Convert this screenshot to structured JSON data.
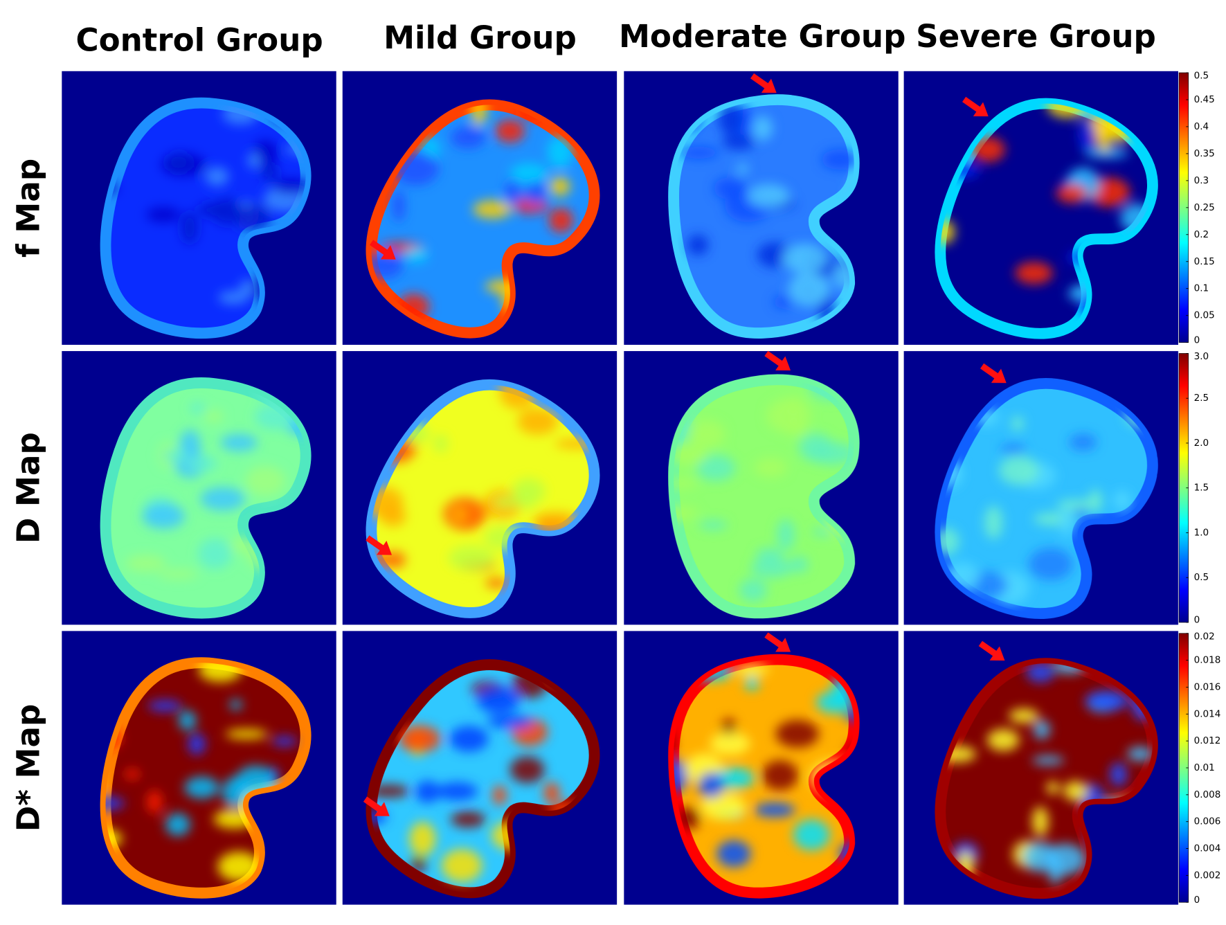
{
  "columns": [
    "Control Group",
    "Mild Group",
    "Moderate Group",
    "Severe Group"
  ],
  "rows": [
    "f Map",
    "D Map",
    "D* Map"
  ],
  "colorbars": [
    {
      "ticks": [
        "0.5",
        "0.45",
        "0.4",
        "0.35",
        "0.3",
        "0.25",
        "0.2",
        "0.15",
        "0.1",
        "0.05",
        "0"
      ]
    },
    {
      "ticks": [
        "3.0",
        "2.5",
        "2.0",
        "1.5",
        "1.0",
        "0.5",
        "0"
      ]
    },
    {
      "ticks": [
        "0.02",
        "0.018",
        "0.016",
        "0.014",
        "0.012",
        "0.01",
        "0.008",
        "0.006",
        "0.004",
        "0.002",
        "0"
      ]
    }
  ]
}
